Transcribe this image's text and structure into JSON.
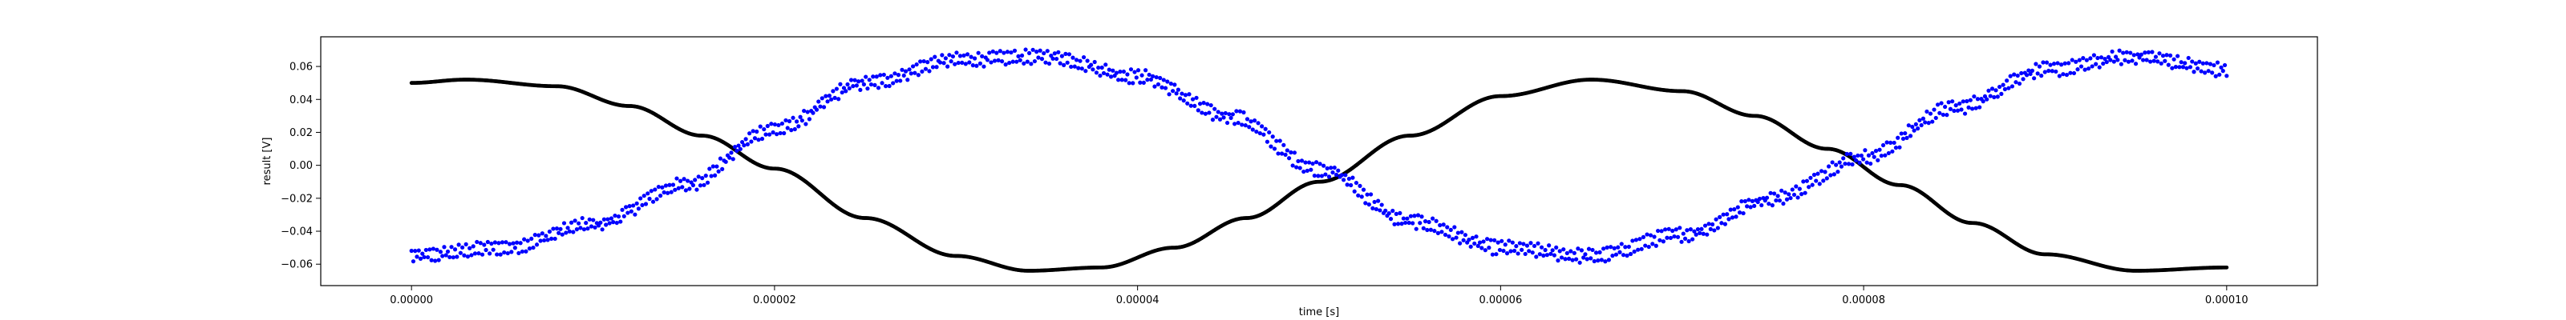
{
  "chart_data": {
    "type": "scatter",
    "xlabel": "time [s]",
    "ylabel": "result [V]",
    "xlim": [
      -5e-06,
      0.000105
    ],
    "ylim": [
      -0.073,
      0.078
    ],
    "xticks": [
      0.0,
      2e-05,
      4e-05,
      6e-05,
      8e-05,
      0.0001
    ],
    "xtick_labels": [
      "0.00000",
      "0.00002",
      "0.00004",
      "0.00006",
      "0.00008",
      "0.00010"
    ],
    "yticks": [
      -0.06,
      -0.04,
      -0.02,
      0.0,
      0.02,
      0.04,
      0.06
    ],
    "ytick_labels": [
      "−0.06",
      "−0.04",
      "−0.02",
      "0.00",
      "0.02",
      "0.04",
      "0.06"
    ],
    "grid": false,
    "series": [
      {
        "color": "#000000",
        "marker": "dot",
        "point_count": 2000,
        "x": [
          0.0,
          3e-06,
          8e-06,
          1.2e-05,
          1.6e-05,
          2e-05,
          2.5e-05,
          3e-05,
          3.4e-05,
          3.8e-05,
          4.2e-05,
          4.6e-05,
          5e-05,
          5.5e-05,
          6e-05,
          6.5e-05,
          7e-05,
          7.4e-05,
          7.8e-05,
          8.2e-05,
          8.6e-05,
          9e-05,
          9.5e-05,
          0.0001
        ],
        "y": [
          0.05,
          0.052,
          0.048,
          0.036,
          0.018,
          -0.002,
          -0.032,
          -0.055,
          -0.064,
          -0.062,
          -0.05,
          -0.032,
          -0.01,
          0.018,
          0.042,
          0.052,
          0.045,
          0.03,
          0.01,
          -0.012,
          -0.035,
          -0.054,
          -0.064,
          -0.062
        ]
      },
      {
        "color": "#0000ff",
        "marker": "dot",
        "point_count": 1000,
        "x": [
          0.0,
          5e-06,
          1e-05,
          1.5e-05,
          2e-05,
          2.5e-05,
          3e-05,
          3.5e-05,
          4e-05,
          4.5e-05,
          5e-05,
          5.5e-05,
          6e-05,
          6.5e-05,
          7e-05,
          7.5e-05,
          8e-05,
          8.5e-05,
          9e-05,
          9.5e-05,
          0.0001
        ],
        "y": [
          -0.055,
          -0.05,
          -0.036,
          -0.012,
          0.022,
          0.05,
          0.064,
          0.066,
          0.054,
          0.03,
          -0.002,
          -0.034,
          -0.05,
          -0.055,
          -0.042,
          -0.02,
          0.005,
          0.035,
          0.058,
          0.066,
          0.058
        ]
      }
    ]
  }
}
